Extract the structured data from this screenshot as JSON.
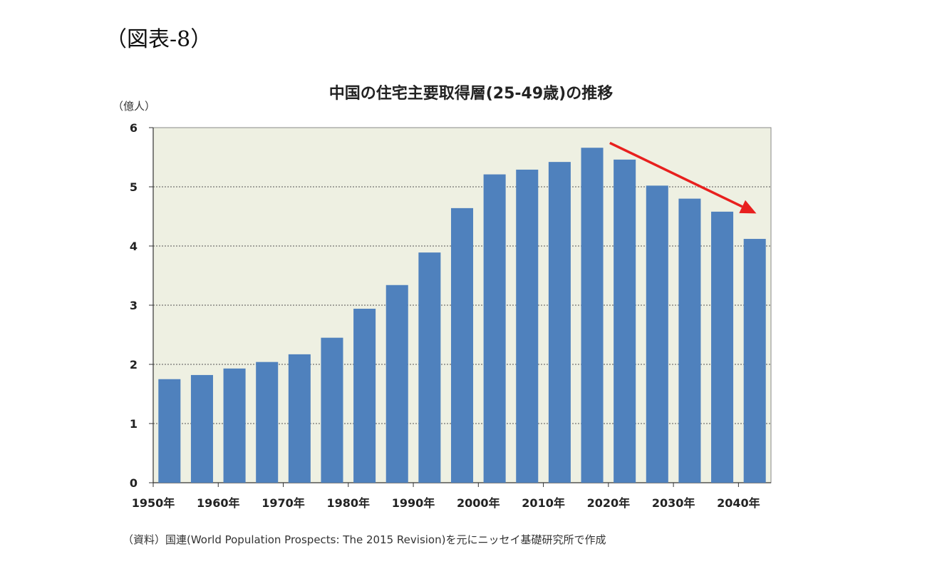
{
  "figure_label": "（図表-8）",
  "source_note": "（資料）国連(World Population Prospects: The 2015 Revision)を元にニッセイ基礎研究所で作成",
  "colors": {
    "bar": "#4f81bd",
    "plot_background": "#eef0e2",
    "arrow": "#e8201e",
    "grid": "#555555"
  },
  "chart_data": {
    "type": "bar",
    "title": "中国の住宅主要取得層(25-49歳)の推移",
    "ylabel": "（億人）",
    "xlabel": "",
    "ylim": [
      0,
      6
    ],
    "yticks": [
      "0",
      "1",
      "2",
      "3",
      "4",
      "5",
      "6"
    ],
    "x_tick_labels": [
      "1950年",
      "1960年",
      "1970年",
      "1980年",
      "1990年",
      "2000年",
      "2010年",
      "2020年",
      "2030年",
      "2040年"
    ],
    "categories": [
      "1950",
      "1955",
      "1960",
      "1965",
      "1970",
      "1975",
      "1980",
      "1985",
      "1990",
      "1995",
      "2000",
      "2005",
      "2010",
      "2015",
      "2020",
      "2025",
      "2030",
      "2035",
      "2040"
    ],
    "values": [
      1.75,
      1.82,
      1.93,
      2.04,
      2.17,
      2.45,
      2.94,
      3.34,
      3.89,
      4.64,
      5.21,
      5.29,
      5.42,
      5.66,
      5.46,
      5.02,
      4.8,
      4.58,
      4.12
    ],
    "grid": true,
    "annotations": [
      "downward-trend-arrow"
    ]
  }
}
